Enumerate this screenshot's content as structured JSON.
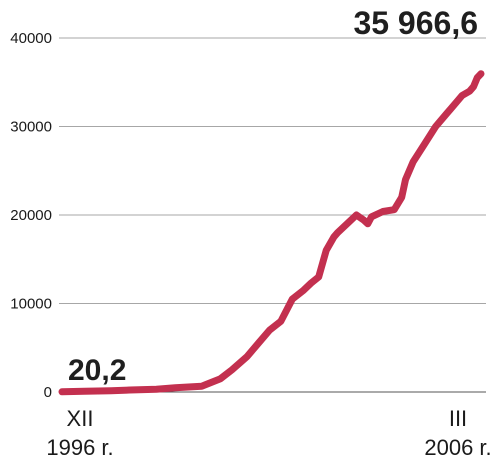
{
  "chart_data": {
    "type": "line",
    "x_start_label_top": "XII",
    "x_start_label_bottom": "1996 r.",
    "x_end_label_top": "III",
    "x_end_label_bottom": "2006 r.",
    "ylim": [
      0,
      40000
    ],
    "yticks": [
      "0",
      "10000",
      "20000",
      "30000",
      "40000"
    ],
    "grid": true,
    "start_value_label": "20,2",
    "end_value_label": "35 966,6",
    "line_color": "#c3304f",
    "series": [
      {
        "x": [
          "1996-12",
          "1997-06",
          "1998-01",
          "1998-06",
          "1999-01",
          "1999-06",
          "2000-01",
          "2000-06",
          "2000-09",
          "2001-01",
          "2001-04",
          "2001-07",
          "2001-10",
          "2002-01",
          "2002-04",
          "2002-06",
          "2002-08",
          "2002-10",
          "2002-12",
          "2003-01",
          "2003-04",
          "2003-06",
          "2003-08",
          "2003-09",
          "2003-10",
          "2004-01",
          "2004-04",
          "2004-06",
          "2004-07",
          "2004-09",
          "2004-12",
          "2005-03",
          "2005-06",
          "2005-07",
          "2005-09",
          "2005-10",
          "2005-12",
          "2006-01",
          "2006-02",
          "2006-03"
        ],
        "values": [
          20.2,
          80,
          150,
          230,
          320,
          480,
          650,
          1500,
          2500,
          4000,
          5500,
          7000,
          8000,
          10500,
          11500,
          12300,
          13000,
          16000,
          17500,
          18000,
          19200,
          20000,
          19400,
          19000,
          19800,
          20400,
          20600,
          22000,
          24000,
          26000,
          28000,
          30000,
          31500,
          32000,
          33000,
          33500,
          34000,
          34500,
          35500,
          35966.6
        ]
      }
    ]
  }
}
